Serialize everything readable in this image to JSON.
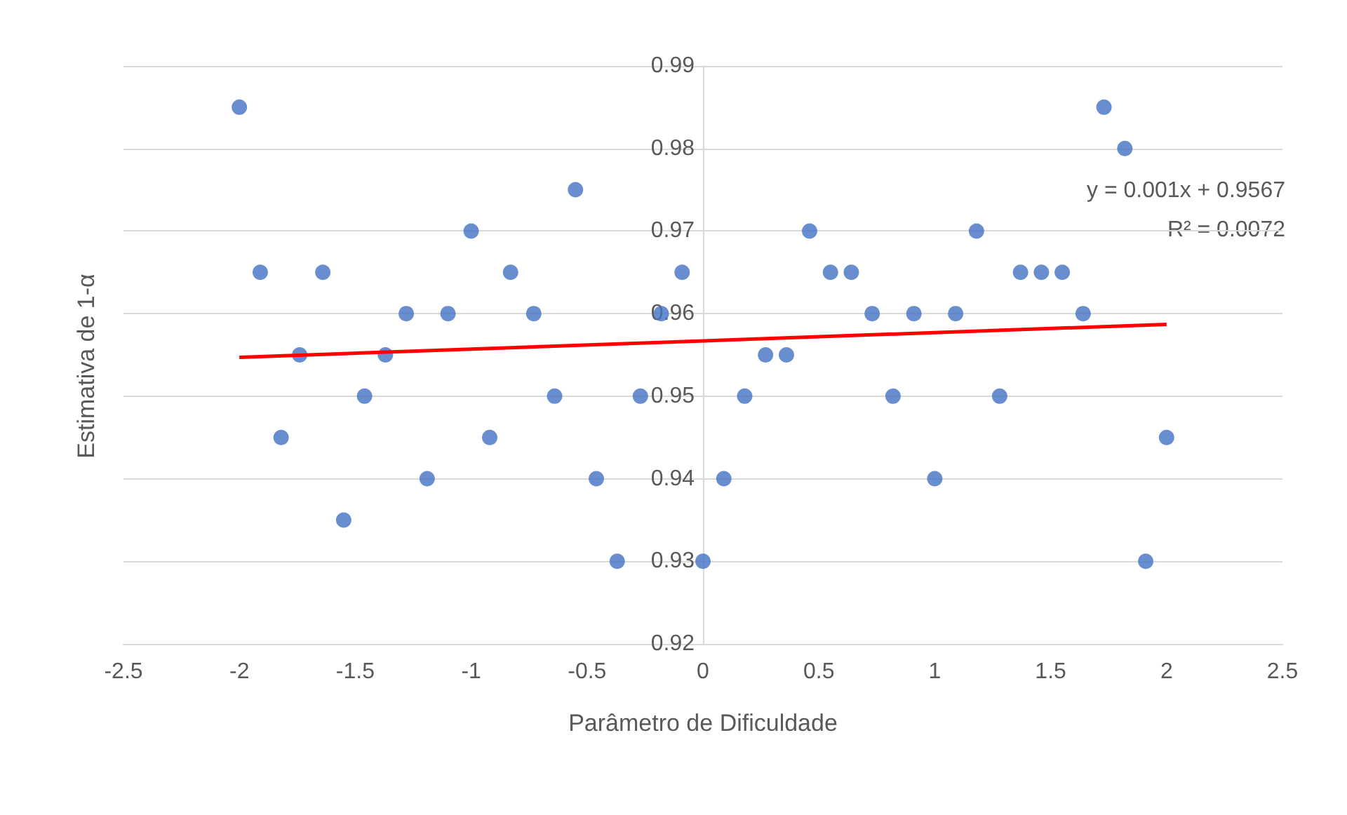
{
  "chart_data": {
    "type": "scatter",
    "xlabel": "Parâmetro de Dificuldade",
    "ylabel": "Estimativa de 1-α",
    "xlim": [
      -2.5,
      2.5
    ],
    "xticks": [
      -2.5,
      -2,
      -1.5,
      -1,
      -0.5,
      0,
      0.5,
      1,
      1.5,
      2,
      2.5
    ],
    "ylim": [
      0.92,
      0.99
    ],
    "yticks": [
      0.92,
      0.93,
      0.94,
      0.95,
      0.96,
      0.97,
      0.98,
      0.99
    ],
    "grid": "y",
    "marker": "circle",
    "annotations": [
      "y = 0.001x + 0.9567",
      "R² = 0.0072"
    ],
    "series": [
      {
        "color": "#4472c4",
        "x": [
          -2.0,
          -1.91,
          -1.82,
          -1.74,
          -1.64,
          -1.55,
          -1.46,
          -1.37,
          -1.28,
          -1.19,
          -1.1,
          -1.0,
          -0.92,
          -0.83,
          -0.73,
          -0.64,
          -0.55,
          -0.46,
          -0.37,
          -0.27,
          -0.18,
          -0.09,
          0.0,
          0.09,
          0.18,
          0.27,
          0.36,
          0.46,
          0.55,
          0.64,
          0.73,
          0.82,
          0.91,
          1.0,
          1.09,
          1.18,
          1.28,
          1.37,
          1.46,
          1.55,
          1.64,
          1.73,
          1.82,
          1.91,
          2.0
        ],
        "values": [
          0.985,
          0.965,
          0.945,
          0.955,
          0.965,
          0.935,
          0.95,
          0.955,
          0.96,
          0.94,
          0.96,
          0.97,
          0.945,
          0.965,
          0.96,
          0.95,
          0.975,
          0.94,
          0.93,
          0.95,
          0.96,
          0.965,
          0.93,
          0.94,
          0.95,
          0.955,
          0.955,
          0.97,
          0.965,
          0.965,
          0.96,
          0.95,
          0.96,
          0.94,
          0.96,
          0.97,
          0.95,
          0.965,
          0.965,
          0.965,
          0.96,
          0.985,
          0.98,
          0.93,
          0.945
        ]
      },
      {
        "type": "line",
        "marker": "none",
        "color": "#ff0000",
        "x": [
          -2,
          2
        ],
        "values": [
          0.9547,
          0.9587
        ]
      }
    ]
  }
}
